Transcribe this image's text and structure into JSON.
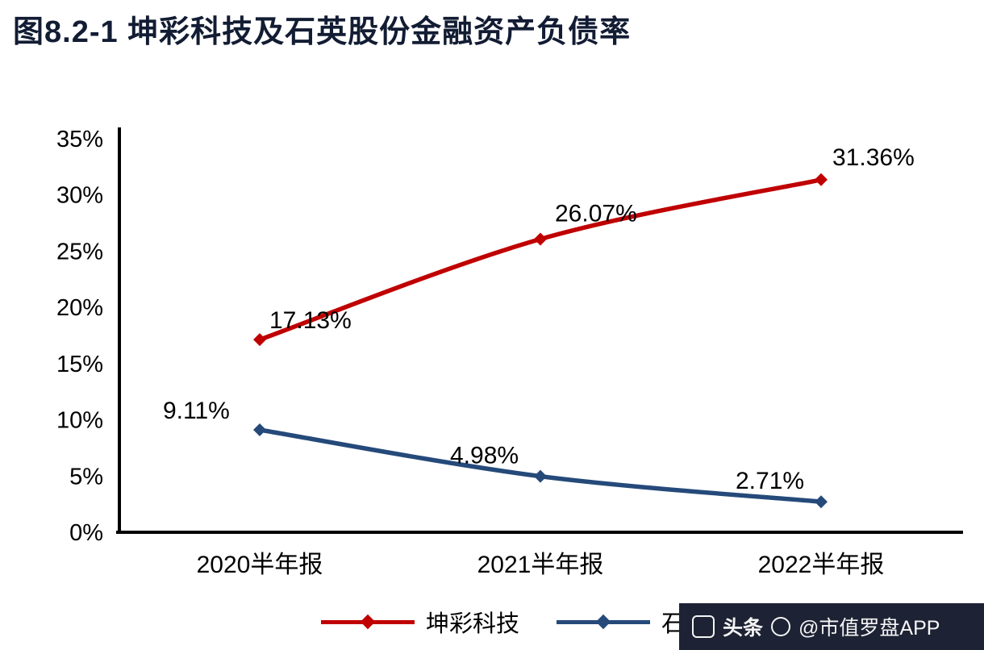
{
  "title": "图8.2-1 坤彩科技及石英股份金融资产负债率",
  "watermark": {
    "platform": "头条",
    "handle": "@市值罗盘APP",
    "background_color": "#1d2234"
  },
  "chart_data": {
    "type": "line",
    "title": "图8.2-1 坤彩科技及石英股份金融资产负债率",
    "categories": [
      "2020半年报",
      "2021半年报",
      "2022半年报"
    ],
    "series": [
      {
        "name": "坤彩科技",
        "color": "#c00000",
        "values": [
          17.13,
          26.07,
          31.36
        ],
        "labels": [
          "17.13%",
          "26.07%",
          "31.36%"
        ]
      },
      {
        "name": "石英股份",
        "color": "#254a7a",
        "values": [
          9.11,
          4.98,
          2.71
        ],
        "labels": [
          "9.11%",
          "4.98%",
          "2.71%"
        ]
      }
    ],
    "xlabel": "",
    "ylabel": "",
    "ylim": [
      0,
      35
    ],
    "ytick_step": 5,
    "ytick_suffix": "%",
    "grid": false,
    "marker": "diamond",
    "legend_position": "bottom"
  }
}
